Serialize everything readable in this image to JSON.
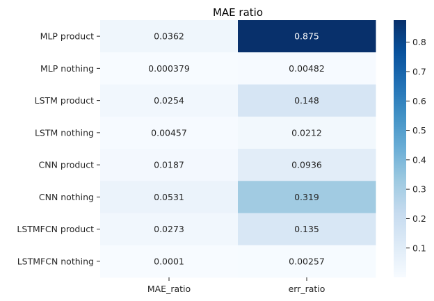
{
  "chart_data": {
    "type": "heatmap",
    "title": "MAE ratio",
    "xlabel": "",
    "ylabel": "",
    "columns": [
      "MAE_ratio",
      "err_ratio"
    ],
    "rows": [
      "MLP product",
      "MLP nothing",
      "LSTM product",
      "LSTM nothing",
      "CNN product",
      "CNN nothing",
      "LSTMFCN product",
      "LSTMFCN nothing"
    ],
    "values": [
      [
        0.0362,
        0.875
      ],
      [
        0.000379,
        0.00482
      ],
      [
        0.0254,
        0.148
      ],
      [
        0.00457,
        0.0212
      ],
      [
        0.0187,
        0.0936
      ],
      [
        0.0531,
        0.319
      ],
      [
        0.0273,
        0.135
      ],
      [
        0.0001,
        0.00257
      ]
    ],
    "value_labels": [
      [
        "0.0362",
        "0.875"
      ],
      [
        "0.000379",
        "0.00482"
      ],
      [
        "0.0254",
        "0.148"
      ],
      [
        "0.00457",
        "0.0212"
      ],
      [
        "0.0187",
        "0.0936"
      ],
      [
        "0.0531",
        "0.319"
      ],
      [
        "0.0273",
        "0.135"
      ],
      [
        "0.0001",
        "0.00257"
      ]
    ],
    "colormap": "Blues",
    "colorbar": {
      "range": [
        0.0001,
        0.875
      ],
      "ticks": [
        0.1,
        0.2,
        0.3,
        0.4,
        0.5,
        0.6,
        0.7,
        0.8
      ],
      "tick_labels": [
        "0.1",
        "0.2",
        "0.3",
        "0.4",
        "0.5",
        "0.6",
        "0.7",
        "0.8"
      ]
    },
    "grid": false,
    "annotation_colors": {
      "light": "#262626",
      "dark": "#ffffff"
    }
  }
}
